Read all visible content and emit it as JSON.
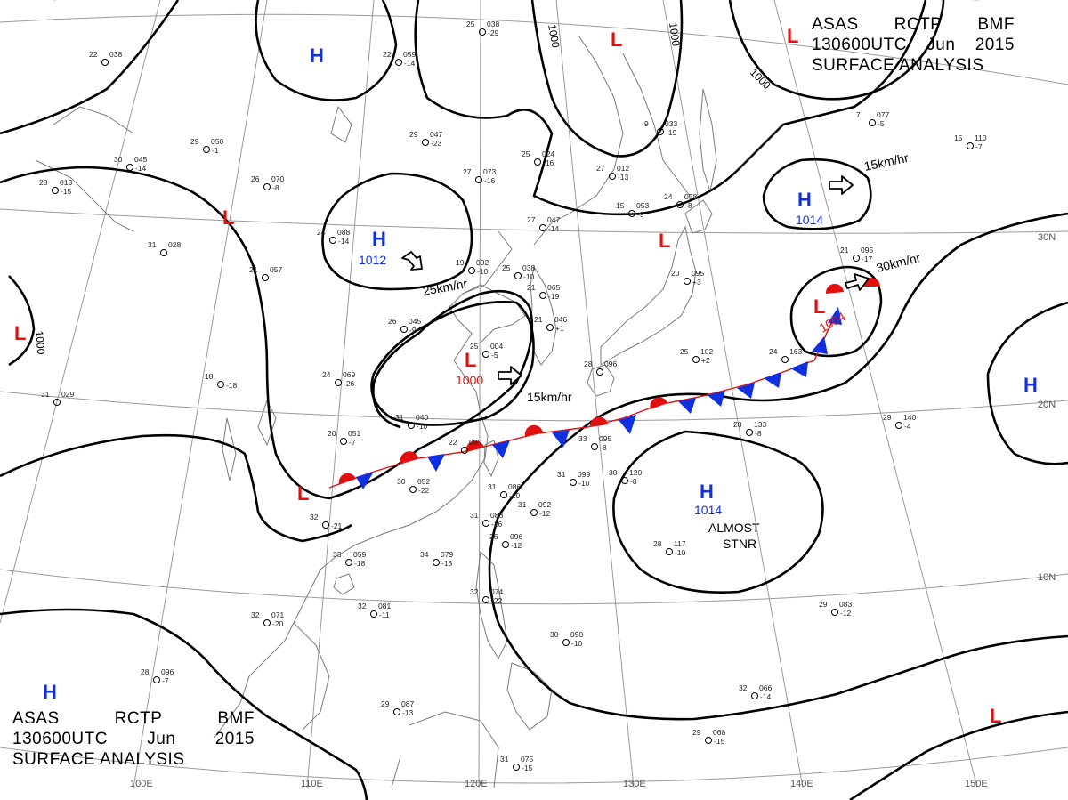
{
  "title": {
    "line1": [
      "ASAS",
      "RCTP",
      "BMF"
    ],
    "line2": [
      "130600UTC",
      "Jun",
      "2015"
    ],
    "line3": "SURFACE ANALYSIS"
  },
  "colors": {
    "high_center": "#1030e0",
    "low_center": "#e01010",
    "warm_front": "#e01010",
    "cold_front": "#1030e0",
    "isobar": "#000000",
    "grid": "#9a9a9a"
  },
  "grid_labels": [
    {
      "id": "110e",
      "text": "110E"
    },
    {
      "id": "120e",
      "text": "120E"
    },
    {
      "id": "130e",
      "text": "130E"
    },
    {
      "id": "140e",
      "text": "140E"
    },
    {
      "id": "150e",
      "text": "150E"
    },
    {
      "id": "100e",
      "text": "100E"
    },
    {
      "id": "30n",
      "text": "30N"
    },
    {
      "id": "20n",
      "text": "20N"
    },
    {
      "id": "10n",
      "text": "10N"
    }
  ],
  "pressure_systems": [
    {
      "id": "h-nw",
      "type": "H",
      "label": "H",
      "value": ""
    },
    {
      "id": "h-central",
      "type": "H",
      "label": "H",
      "value": "1012"
    },
    {
      "id": "h-ne",
      "type": "H",
      "label": "H",
      "value": "1014"
    },
    {
      "id": "h-pacific",
      "type": "H",
      "label": "H",
      "value": "1014"
    },
    {
      "id": "h-east",
      "type": "H",
      "label": "H",
      "value": ""
    },
    {
      "id": "h-sw",
      "type": "H",
      "label": "H",
      "value": ""
    },
    {
      "id": "l-north",
      "type": "L",
      "label": "L",
      "value": ""
    },
    {
      "id": "l-ne-corner",
      "type": "L",
      "label": "L",
      "value": ""
    },
    {
      "id": "l-west",
      "type": "L",
      "label": "L",
      "value": ""
    },
    {
      "id": "l-far-west",
      "type": "L",
      "label": "L",
      "value": ""
    },
    {
      "id": "l-manchuria",
      "type": "L",
      "label": "L",
      "value": ""
    },
    {
      "id": "l-yellow-sea",
      "type": "L",
      "label": "L",
      "value": "1000"
    },
    {
      "id": "l-japan",
      "type": "L",
      "label": "L",
      "value": "1004"
    },
    {
      "id": "l-sichuan",
      "type": "L",
      "label": "L",
      "value": ""
    },
    {
      "id": "l-se",
      "type": "L",
      "label": "L",
      "value": ""
    }
  ],
  "motion_labels": [
    {
      "id": "motion-central-high",
      "text": "25km/hr"
    },
    {
      "id": "motion-yellow-sea-low",
      "text": "15km/hr"
    },
    {
      "id": "motion-ne-high",
      "text": "15km/hr"
    },
    {
      "id": "motion-japan-low",
      "text": "30km/hr"
    }
  ],
  "annotations": {
    "stationary_1": "ALMOST",
    "stationary_2": "STNR"
  },
  "isobar_labels": [
    {
      "id": "isobar-1000-north-a",
      "text": "1000"
    },
    {
      "id": "isobar-1000-north-b",
      "text": "1000"
    },
    {
      "id": "isobar-1000-ne",
      "text": "1000"
    },
    {
      "id": "isobar-1000-west",
      "text": "1000"
    }
  ],
  "station_samples": [
    {
      "id": "stn-a",
      "temp": "22",
      "pres": "059",
      "tend": "-14"
    },
    {
      "id": "stn-b",
      "temp": "29",
      "pres": "047",
      "tend": "-23"
    },
    {
      "id": "stn-c",
      "temp": "26",
      "pres": "070",
      "tend": "-8"
    },
    {
      "id": "stn-d",
      "temp": "24",
      "pres": "088",
      "tend": "-14"
    },
    {
      "id": "stn-e",
      "temp": "25",
      "pres": "038",
      "tend": "-10"
    },
    {
      "id": "stn-f",
      "temp": "27",
      "pres": "047",
      "tend": "-14"
    },
    {
      "id": "stn-g",
      "temp": "26",
      "pres": "045",
      "tend": "-9"
    },
    {
      "id": "stn-h",
      "temp": "24",
      "pres": "069",
      "tend": "-26"
    },
    {
      "id": "stn-i",
      "temp": "31",
      "pres": "040",
      "tend": "-10"
    },
    {
      "id": "stn-j",
      "temp": "20",
      "pres": "051",
      "tend": "-7"
    },
    {
      "id": "stn-k",
      "temp": "22",
      "pres": "080",
      "tend": ""
    },
    {
      "id": "stn-l",
      "temp": "30",
      "pres": "052",
      "tend": "-22"
    },
    {
      "id": "stn-m",
      "temp": "33",
      "pres": "095",
      "tend": "-8"
    },
    {
      "id": "stn-n",
      "temp": "31",
      "pres": "099",
      "tend": "-10"
    },
    {
      "id": "stn-o",
      "temp": "31",
      "pres": "086",
      "tend": "-10"
    },
    {
      "id": "stn-p",
      "temp": "28",
      "pres": "117",
      "tend": "-10"
    },
    {
      "id": "stn-q",
      "temp": "29",
      "pres": "140",
      "tend": "-4"
    },
    {
      "id": "stn-r",
      "temp": "28",
      "pres": "133",
      "tend": "-8"
    },
    {
      "id": "stn-s",
      "temp": "34",
      "pres": "079",
      "tend": "-13"
    },
    {
      "id": "stn-t",
      "temp": "33",
      "pres": "059",
      "tend": "-18"
    },
    {
      "id": "stn-u",
      "temp": "32",
      "pres": "081",
      "tend": "-11"
    },
    {
      "id": "stn-v",
      "temp": "32",
      "pres": "071",
      "tend": "-20"
    },
    {
      "id": "stn-w",
      "temp": "32",
      "pres": "074",
      "tend": "-22"
    },
    {
      "id": "stn-x",
      "temp": "30",
      "pres": "090",
      "tend": "-10"
    },
    {
      "id": "stn-y",
      "temp": "29",
      "pres": "083",
      "tend": "-12"
    },
    {
      "id": "stn-z",
      "temp": "32",
      "pres": "066",
      "tend": "-14"
    },
    {
      "id": "stn-aa",
      "temp": "29",
      "pres": "068",
      "tend": "-15"
    },
    {
      "id": "stn-ab",
      "temp": "29",
      "pres": "087",
      "tend": "-13"
    },
    {
      "id": "stn-ac",
      "temp": "31",
      "pres": "075",
      "tend": "-15"
    },
    {
      "id": "stn-ad",
      "temp": "28",
      "pres": "096",
      "tend": "-7"
    },
    {
      "id": "stn-ae",
      "temp": "31",
      "pres": "029",
      "tend": ""
    },
    {
      "id": "stn-af",
      "temp": "18",
      "pres": "",
      "tend": "-18"
    },
    {
      "id": "stn-ag",
      "temp": "24",
      "pres": "163",
      "tend": ""
    },
    {
      "id": "stn-ah",
      "temp": "21",
      "pres": "095",
      "tend": "-17"
    },
    {
      "id": "stn-ai",
      "temp": "15",
      "pres": "110",
      "tend": "-7"
    },
    {
      "id": "stn-aj",
      "temp": "7",
      "pres": "077",
      "tend": "-5"
    },
    {
      "id": "stn-ak",
      "temp": "9",
      "pres": "033",
      "tend": "-19"
    },
    {
      "id": "stn-al",
      "temp": "15",
      "pres": "053",
      "tend": "-9"
    },
    {
      "id": "stn-am",
      "temp": "27",
      "pres": "012",
      "tend": "-13"
    },
    {
      "id": "stn-an",
      "temp": "25",
      "pres": "024",
      "tend": "-16"
    },
    {
      "id": "stn-ao",
      "temp": "27",
      "pres": "073",
      "tend": "-16"
    },
    {
      "id": "stn-ap",
      "temp": "25",
      "pres": "038",
      "tend": "-29"
    },
    {
      "id": "stn-aq",
      "temp": "29",
      "pres": "050",
      "tend": "-1"
    },
    {
      "id": "stn-ar",
      "temp": "30",
      "pres": "045",
      "tend": "-14"
    },
    {
      "id": "stn-as",
      "temp": "28",
      "pres": "013",
      "tend": "-15"
    },
    {
      "id": "stn-at",
      "temp": "22",
      "pres": "038",
      "tend": ""
    },
    {
      "id": "stn-au",
      "temp": "31",
      "pres": "028",
      "tend": ""
    },
    {
      "id": "stn-av",
      "temp": "21",
      "pres": "057",
      "tend": ""
    },
    {
      "id": "stn-aw",
      "temp": "32",
      "pres": "028",
      "tend": "-21"
    },
    {
      "id": "stn-ax",
      "temp": "31",
      "pres": "092",
      "tend": "-12"
    },
    {
      "id": "stn-ay",
      "temp": "26",
      "pres": "096",
      "tend": "-12"
    },
    {
      "id": "stn-az",
      "temp": "25",
      "pres": "004",
      "tend": "-5"
    },
    {
      "id": "stn-ba",
      "temp": "21",
      "pres": "065",
      "tend": "-19"
    },
    {
      "id": "stn-bb",
      "temp": "30",
      "pres": "120",
      "tend": "-8"
    },
    {
      "id": "stn-bc",
      "temp": "20",
      "pres": "095",
      "tend": "+3"
    },
    {
      "id": "stn-bd",
      "temp": "25",
      "pres": "102",
      "tend": "+2"
    },
    {
      "id": "stn-be",
      "temp": "28",
      "pres": "096",
      "tend": ""
    },
    {
      "id": "stn-bf",
      "temp": "19",
      "pres": "092",
      "tend": "-10"
    },
    {
      "id": "stn-bg",
      "temp": "31",
      "pres": "088",
      "tend": "-16"
    },
    {
      "id": "stn-bh",
      "temp": "21",
      "pres": "046",
      "tend": "+1"
    },
    {
      "id": "stn-bi",
      "temp": "24",
      "pres": "058",
      "tend": "-8"
    }
  ]
}
